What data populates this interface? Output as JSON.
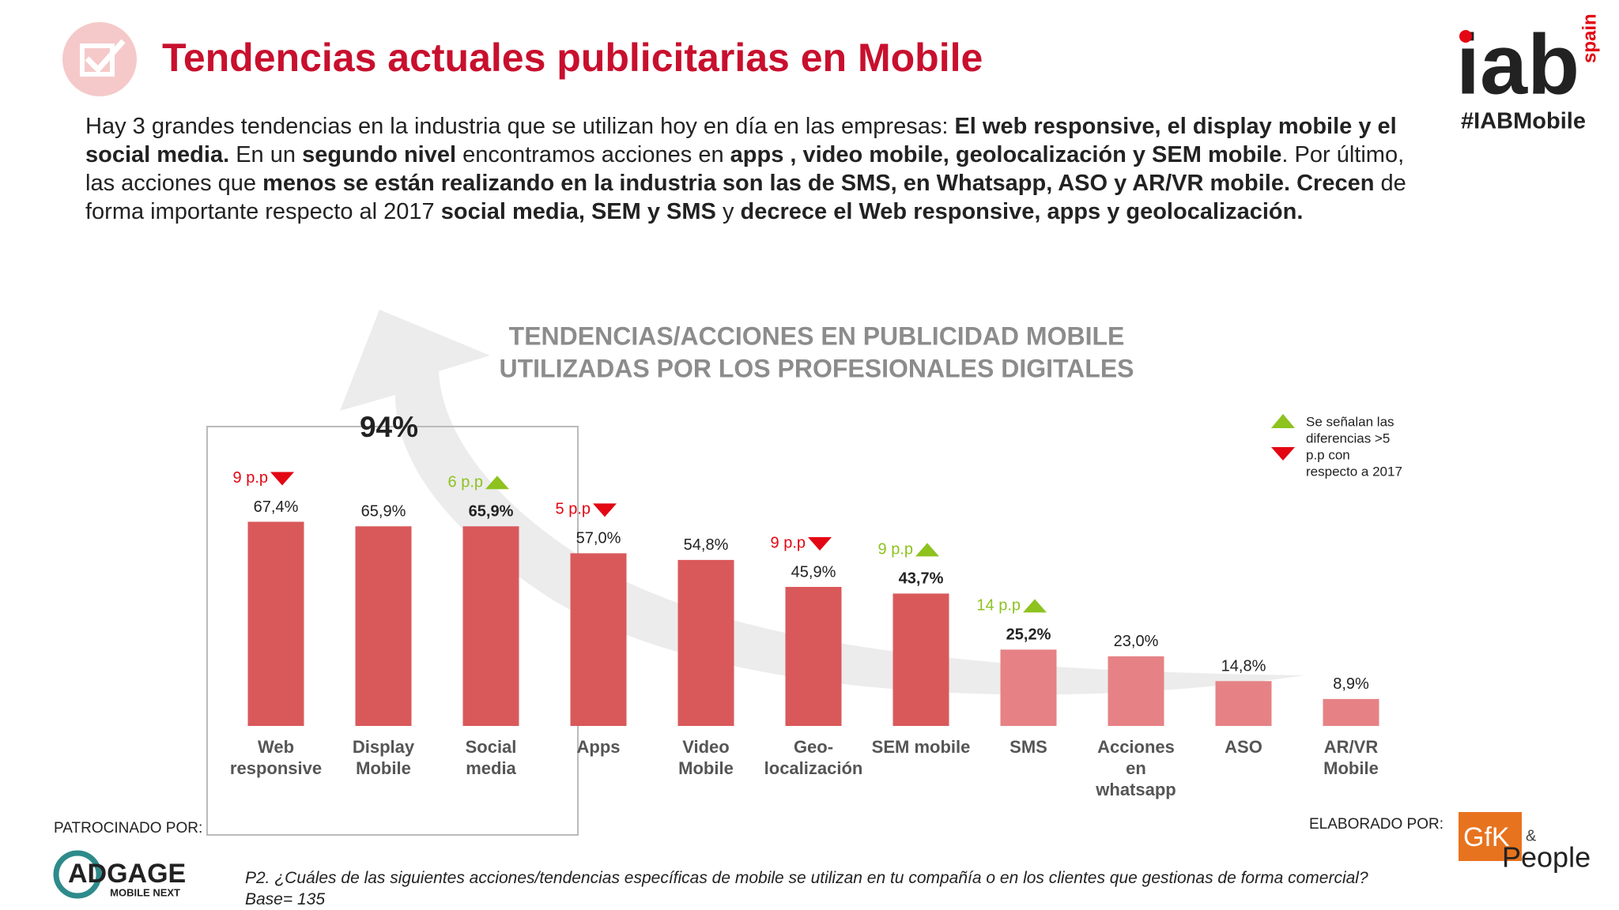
{
  "header": {
    "title": "Tendencias actuales publicitarias en Mobile"
  },
  "intro": [
    {
      "text": "Hay 3 grandes tendencias en la industria que se utilizan hoy en día en las empresas: ",
      "bold": false
    },
    {
      "text": "El web responsive, el display mobile y el social media.",
      "bold": true
    },
    {
      "text": " En un ",
      "bold": false
    },
    {
      "text": "segundo nivel",
      "bold": true
    },
    {
      "text": " encontramos acciones en ",
      "bold": false
    },
    {
      "text": "apps , video mobile, geolocalización y SEM mobile",
      "bold": true
    },
    {
      "text": ". Por último, las acciones que ",
      "bold": false
    },
    {
      "text": "menos se están realizando en la industria son las de SMS, en Whatsapp, ASO y AR/VR mobile.",
      "bold": true
    },
    {
      "text": " ",
      "bold": false
    },
    {
      "text": "Crecen",
      "bold": true
    },
    {
      "text": " de forma importante respecto al 2017 ",
      "bold": false
    },
    {
      "text": "social media, SEM y SMS",
      "bold": true
    },
    {
      "text": " y ",
      "bold": false
    },
    {
      "text": "decrece el Web responsive, apps y geolocalización.",
      "bold": true
    }
  ],
  "logo": {
    "brand": "iab",
    "region": "spain",
    "hashtag": "#IABMobile"
  },
  "chart_data": {
    "type": "bar",
    "title_lines": [
      "TENDENCIAS/ACCIONES EN PUBLICIDAD MOBILE",
      "UTILIZADAS POR LOS PROFESIONALES DIGITALES"
    ],
    "categories": [
      "Web responsive",
      "Display Mobile",
      "Social media",
      "Apps",
      "Video Mobile",
      "Geo-localización",
      "SEM mobile",
      "SMS",
      "Acciones en whatsapp",
      "ASO",
      "AR/VR Mobile"
    ],
    "values": [
      67.4,
      65.9,
      65.9,
      57.0,
      54.8,
      45.9,
      43.7,
      25.2,
      23.0,
      14.8,
      8.9
    ],
    "value_labels": [
      "67,4%",
      "65,9%",
      "65,9%",
      "57,0%",
      "54,8%",
      "45,9%",
      "43,7%",
      "25,2%",
      "23,0%",
      "14,8%",
      "8,9%"
    ],
    "colors": [
      "#d9595b",
      "#d9595b",
      "#d9595b",
      "#d9595b",
      "#d9595b",
      "#d9595b",
      "#d9595b",
      "#e68285",
      "#e68285",
      "#e68285",
      "#e68285"
    ],
    "changes": [
      {
        "label": "9 p.p",
        "direction": "down"
      },
      null,
      {
        "label": "6 p.p",
        "direction": "up"
      },
      {
        "label": "5 p.p",
        "direction": "down"
      },
      null,
      {
        "label": "9 p.p",
        "direction": "down"
      },
      {
        "label": "9 p.p",
        "direction": "up"
      },
      {
        "label": "14 p.p",
        "direction": "up"
      },
      null,
      null,
      null
    ],
    "direction_colors": {
      "up": "#8dc21f",
      "down": "#e30613"
    },
    "highlight": {
      "label": "94%",
      "from": 0,
      "to": 2
    },
    "legend_note": [
      "Se señalan las",
      "diferencias >5",
      "p.p con",
      "respecto a 2017"
    ]
  },
  "footer": {
    "sponsor_label": "PATROCINADO POR:",
    "sponsor": {
      "name": "ADGAGE",
      "tagline": "MOBILE NEXT"
    },
    "author_label": "ELABORADO POR:",
    "author": {
      "name1": "GfK",
      "amp": "&",
      "name2": "People"
    },
    "question": "P2. ¿Cuáles de las siguientes acciones/tendencias específicas de mobile se utilizan en tu compañía o en los clientes que gestionas de forma comercial?",
    "base": "Base= 135"
  }
}
